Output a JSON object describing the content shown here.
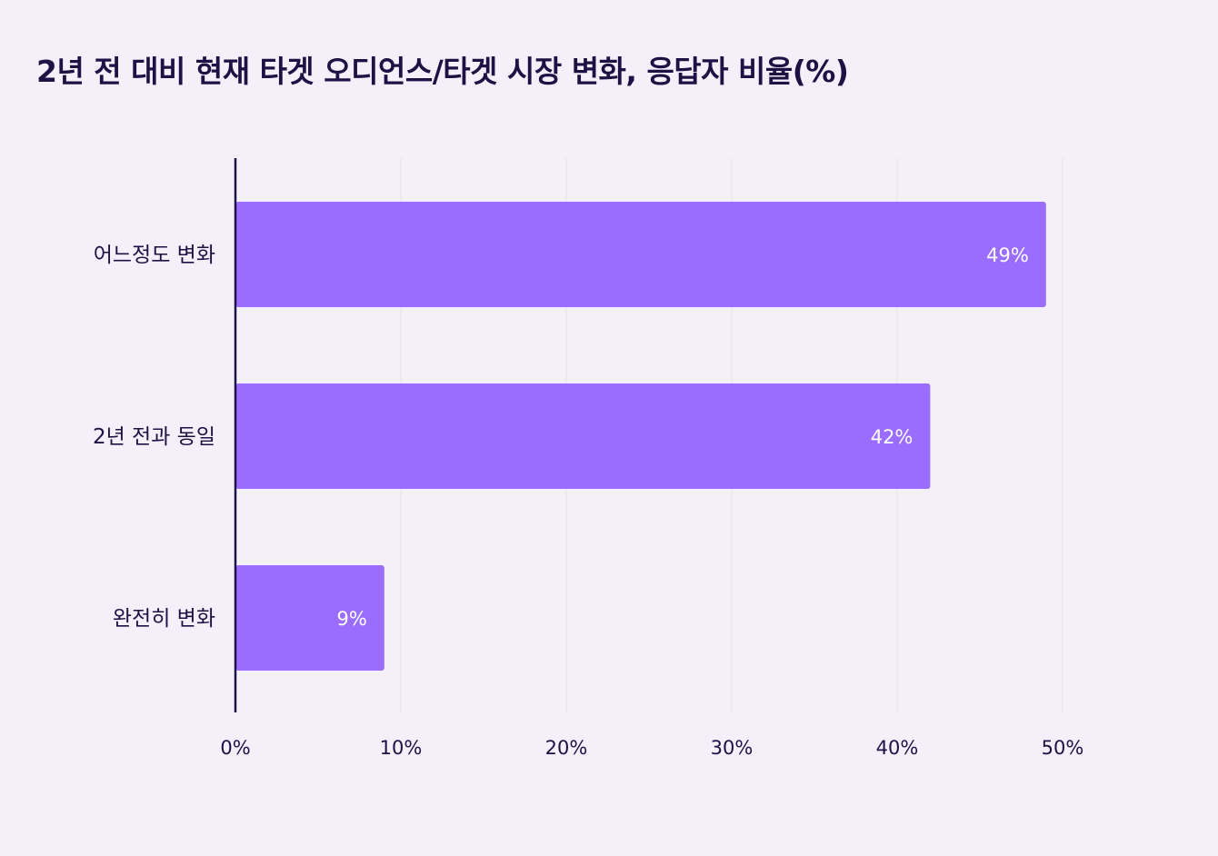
{
  "chart_data": {
    "type": "bar",
    "orientation": "horizontal",
    "title": "2년 전 대비 현재 타겟 오디언스/타겟 시장 변화, 응답자 비율(%)",
    "categories": [
      "어느정도 변화",
      "2년 전과 동일",
      "완전히 변화"
    ],
    "values": [
      49,
      42,
      9
    ],
    "data_labels": [
      "49%",
      "42%",
      "9%"
    ],
    "xlim": [
      0,
      50
    ],
    "xticks": [
      0,
      10,
      20,
      30,
      40,
      50
    ],
    "xtick_labels": [
      "0%",
      "10%",
      "20%",
      "30%",
      "40%",
      "50%"
    ],
    "xlabel": "",
    "ylabel": "",
    "grid": true,
    "bar_color": "#9b6dff",
    "grid_color": "#e4e1ea",
    "axis_color": "#1e1245"
  }
}
